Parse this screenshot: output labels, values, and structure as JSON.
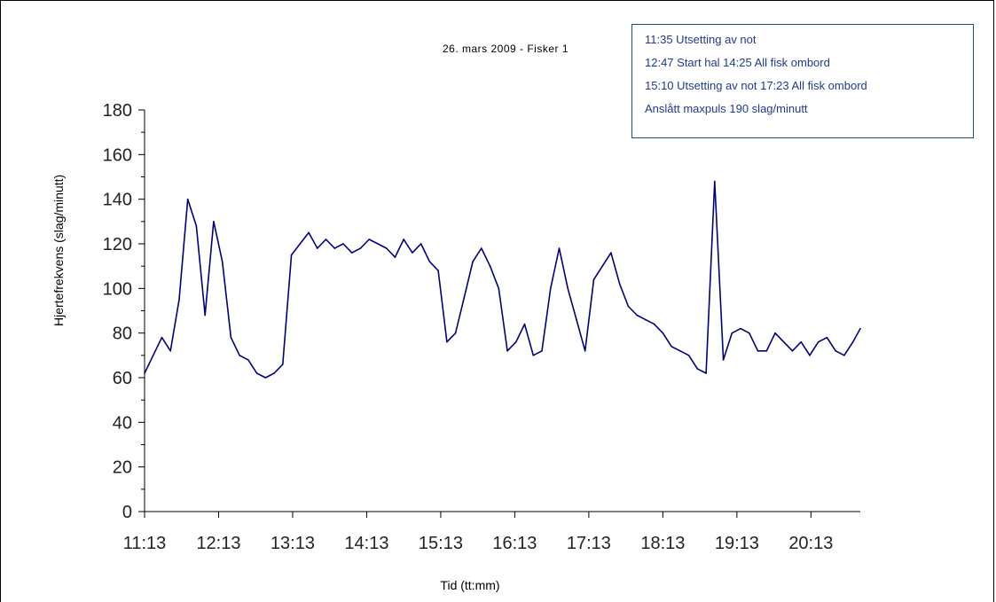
{
  "chart_data": {
    "type": "line",
    "title": "26. mars 2009 - Fisker 1",
    "xlabel": "Tid (tt:mm)",
    "ylabel": "Hjertefrekvens (slag/minutt)",
    "ylim": [
      0,
      180
    ],
    "yticks": [
      0,
      20,
      40,
      60,
      80,
      100,
      120,
      140,
      160,
      180
    ],
    "xlim": [
      "11:13",
      "20:53"
    ],
    "xticks": [
      "11:13",
      "12:13",
      "13:13",
      "14:13",
      "15:13",
      "16:13",
      "17:13",
      "18:13",
      "19:13",
      "20:13"
    ],
    "grid": false,
    "line_color": "#000080",
    "series": [
      {
        "x": [
          "11:13",
          "11:20",
          "11:27",
          "11:34",
          "11:41",
          "11:48",
          "11:55",
          "12:02",
          "12:09",
          "12:16",
          "12:23",
          "12:30",
          "12:37",
          "12:44",
          "12:51",
          "12:58",
          "13:05",
          "13:12",
          "13:19",
          "13:26",
          "13:33",
          "13:40",
          "13:47",
          "13:54",
          "14:01",
          "14:08",
          "14:15",
          "14:22",
          "14:29",
          "14:36",
          "14:43",
          "14:50",
          "14:57",
          "15:04",
          "15:11",
          "15:18",
          "15:25",
          "15:32",
          "15:39",
          "15:46",
          "15:53",
          "16:00",
          "16:07",
          "16:14",
          "16:21",
          "16:28",
          "16:35",
          "16:42",
          "16:49",
          "16:56",
          "17:03",
          "17:10",
          "17:17",
          "17:24",
          "17:31",
          "17:38",
          "17:45",
          "17:52",
          "17:59",
          "18:06",
          "18:13",
          "18:20",
          "18:27",
          "18:34",
          "18:41",
          "18:48",
          "18:55",
          "19:02",
          "19:09",
          "19:16",
          "19:23",
          "19:30",
          "19:37",
          "19:44",
          "19:51",
          "19:58",
          "20:05",
          "20:12",
          "20:19",
          "20:26",
          "20:33",
          "20:40",
          "20:47",
          "20:53"
        ],
        "values": [
          62,
          70,
          78,
          72,
          95,
          140,
          128,
          88,
          130,
          112,
          78,
          70,
          68,
          62,
          60,
          62,
          66,
          115,
          120,
          125,
          118,
          122,
          118,
          120,
          116,
          118,
          122,
          120,
          118,
          114,
          122,
          116,
          120,
          112,
          108,
          76,
          80,
          96,
          112,
          118,
          110,
          100,
          72,
          76,
          84,
          70,
          72,
          100,
          118,
          100,
          86,
          72,
          104,
          110,
          116,
          102,
          92,
          88,
          86,
          84,
          80,
          74,
          72,
          70,
          64,
          62,
          148,
          68,
          80,
          82,
          80,
          72,
          72,
          80,
          76,
          72,
          76,
          70,
          76,
          78,
          72,
          70,
          76,
          82
        ]
      }
    ]
  },
  "legend_box": {
    "lines": [
      "11:35 Utsetting av not",
      "12:47 Start hal 14:25 All fisk ombord",
      "15:10 Utsetting av not 17:23 All fisk ombord",
      "Anslått maxpuls 190 slag/minutt"
    ]
  }
}
